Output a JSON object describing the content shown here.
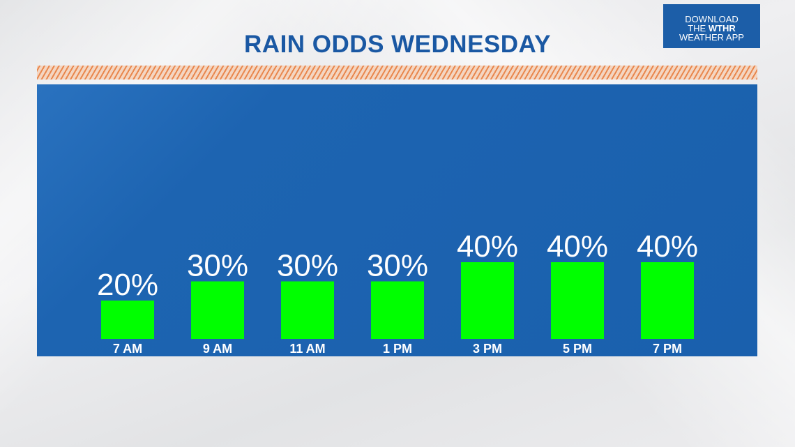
{
  "title": "RAIN ODDS WEDNESDAY",
  "app_promo": {
    "line1": "DOWNLOAD",
    "line2_prefix": "THE",
    "line2_brand": "WTHR",
    "line3": "WEATHER APP"
  },
  "colors": {
    "bar": "#00ff00",
    "panel": "#1a60ad",
    "title": "#1a58a3",
    "stripe": "#e9874d"
  },
  "chart_data": {
    "type": "bar",
    "title": "RAIN ODDS WEDNESDAY",
    "categories": [
      "7 AM",
      "9 AM",
      "11 AM",
      "1 PM",
      "3 PM",
      "5 PM",
      "7 PM"
    ],
    "values": [
      20,
      30,
      30,
      30,
      40,
      40,
      40
    ],
    "value_labels": [
      "20%",
      "30%",
      "30%",
      "30%",
      "40%",
      "40%",
      "40%"
    ],
    "xlabel": "",
    "ylabel": "",
    "ylim": [
      0,
      100
    ],
    "grid": false,
    "legend": "none"
  }
}
